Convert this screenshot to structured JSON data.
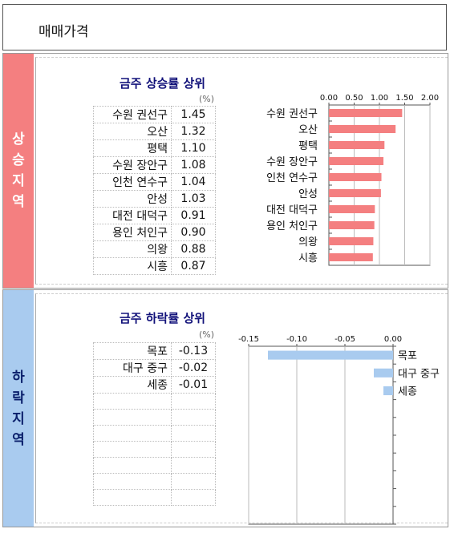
{
  "page": {
    "title": "매매가격"
  },
  "rising": {
    "side_label": [
      "상",
      "승",
      "지",
      "역"
    ],
    "section_title": "금주 상승률 상위",
    "unit_label": "(%)",
    "rows": [
      {
        "name": "수원 권선구",
        "value": "1.45"
      },
      {
        "name": "오산",
        "value": "1.32"
      },
      {
        "name": "평택",
        "value": "1.10"
      },
      {
        "name": "수원 장안구",
        "value": "1.08"
      },
      {
        "name": "인천 연수구",
        "value": "1.04"
      },
      {
        "name": "안성",
        "value": "1.03"
      },
      {
        "name": "대전 대덕구",
        "value": "0.91"
      },
      {
        "name": "용인 처인구",
        "value": "0.90"
      },
      {
        "name": "의왕",
        "value": "0.88"
      },
      {
        "name": "시흥",
        "value": "0.87"
      }
    ]
  },
  "falling": {
    "side_label": [
      "하",
      "락",
      "지",
      "역"
    ],
    "section_title": "금주 하락률 상위",
    "unit_label": "(%)",
    "rows": [
      {
        "name": "목포",
        "value": "-0.13"
      },
      {
        "name": "대구 중구",
        "value": "-0.02"
      },
      {
        "name": "세종",
        "value": "-0.01"
      },
      {
        "name": "",
        "value": ""
      },
      {
        "name": "",
        "value": ""
      },
      {
        "name": "",
        "value": ""
      },
      {
        "name": "",
        "value": ""
      },
      {
        "name": "",
        "value": ""
      },
      {
        "name": "",
        "value": ""
      },
      {
        "name": "",
        "value": ""
      }
    ]
  },
  "chart_data": [
    {
      "type": "bar",
      "orientation": "horizontal",
      "categories": [
        "수원 권선구",
        "오산",
        "평택",
        "수원 장안구",
        "인천 연수구",
        "안성",
        "대전 대덕구",
        "용인 처인구",
        "의왕",
        "시흥"
      ],
      "values": [
        1.45,
        1.32,
        1.1,
        1.08,
        1.04,
        1.03,
        0.91,
        0.9,
        0.88,
        0.87
      ],
      "xlim": [
        0,
        2.0
      ],
      "ticks": [
        "0.00",
        "0.50",
        "1.00",
        "1.50",
        "2.00"
      ],
      "tick_values": [
        0,
        0.5,
        1.0,
        1.5,
        2.0
      ],
      "axis_position": "top",
      "grid": true,
      "color": "#f47f80"
    },
    {
      "type": "bar",
      "orientation": "horizontal",
      "categories": [
        "목포",
        "대구 중구",
        "세종",
        "",
        "",
        "",
        "",
        "",
        "",
        ""
      ],
      "values": [
        -0.13,
        -0.02,
        -0.01,
        null,
        null,
        null,
        null,
        null,
        null,
        null
      ],
      "xlim": [
        -0.15,
        0.0
      ],
      "ticks": [
        "-0.15",
        "-0.10",
        "-0.05",
        "0.00"
      ],
      "tick_values": [
        -0.15,
        -0.1,
        -0.05,
        0.0
      ],
      "axis_position": "top",
      "grid": true,
      "color": "#a9cbef"
    }
  ]
}
